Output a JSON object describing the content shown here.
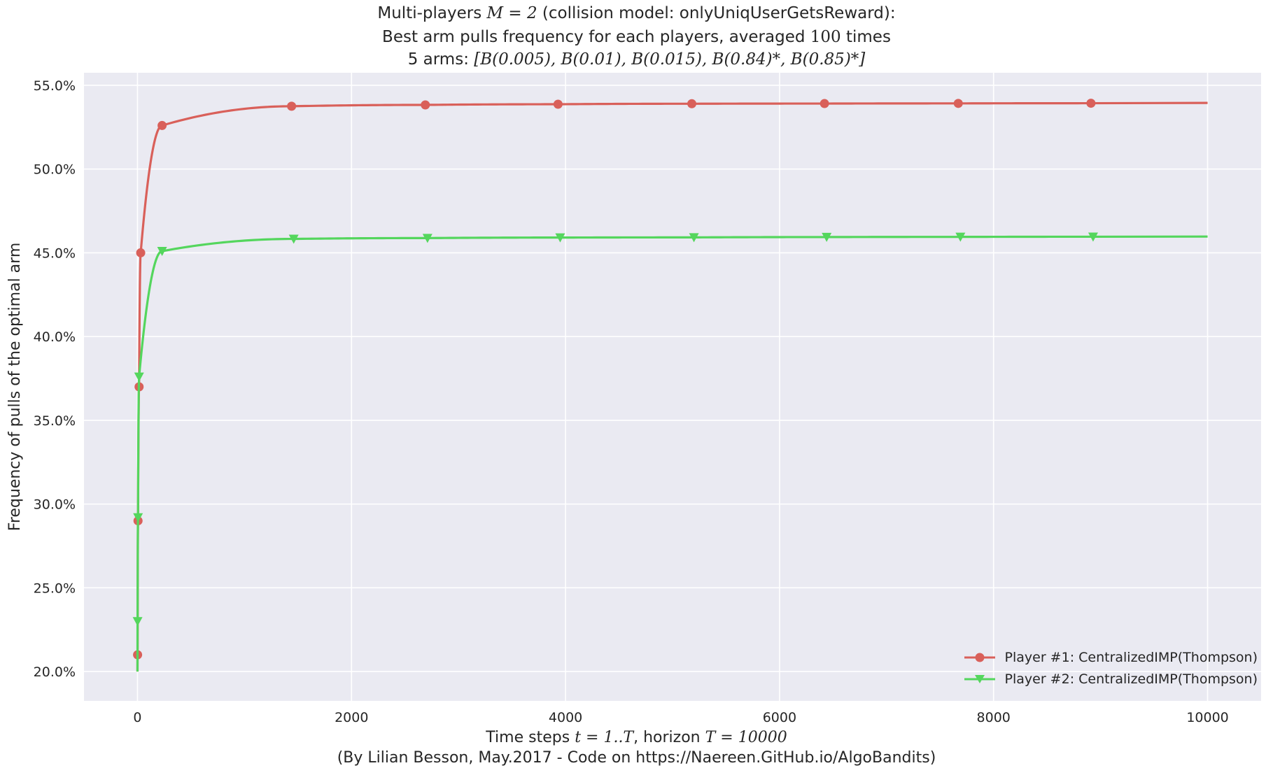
{
  "title": {
    "line1_pre": "Multi-players ",
    "line1_math": "M = 2",
    "line1_post": " (collision model: onlyUniqUserGetsReward):",
    "line2_pre": "Best arm pulls frequency for each players, averaged ",
    "line2_math": "100",
    "line2_post": " times",
    "line3_pre": "5 arms: ",
    "line3_math": "[B(0.005), B(0.01), B(0.015), B(0.84)*, B(0.85)*]"
  },
  "xlabel": {
    "pre": "Time steps ",
    "math1": "t = 1..T",
    "mid": ", horizon ",
    "math2": "T = 10000"
  },
  "credit": "(By Lilian Besson, May.2017 - Code on https://Naereen.GitHub.io/AlgoBandits)",
  "ylabel": "Frequency of pulls of the optimal arm",
  "colors": {
    "background": "#eaeaf2",
    "grid": "#ffffff",
    "player1": "#d9605a",
    "player2": "#54d65d"
  },
  "chart_data": {
    "type": "line",
    "xlim": [
      -500,
      10500
    ],
    "ylim": [
      0.1825,
      0.5575
    ],
    "x_ticks": [
      0,
      2000,
      4000,
      6000,
      8000,
      10000
    ],
    "x_tick_labels": [
      "0",
      "2000",
      "4000",
      "6000",
      "8000",
      "10000"
    ],
    "y_ticks": [
      0.2,
      0.25,
      0.3,
      0.35,
      0.4,
      0.45,
      0.5,
      0.55
    ],
    "y_tick_labels": [
      "20.0%",
      "25.0%",
      "30.0%",
      "35.0%",
      "40.0%",
      "45.0%",
      "50.0%",
      "55.0%"
    ],
    "grid": true,
    "legend_position": "bottom-right",
    "series": [
      {
        "name": "Player #1: CentralizedIMP(Thompson)",
        "marker": "circle",
        "asymptote": 0.5395,
        "start": 0.2,
        "markers_x": [
          1,
          5,
          15,
          30,
          230,
          1440,
          2690,
          3930,
          5180,
          6420,
          7670,
          8910
        ],
        "markers_y": [
          0.21,
          0.29,
          0.37,
          0.45,
          0.526,
          0.5375,
          0.5383,
          0.5387,
          0.539,
          0.5391,
          0.5392,
          0.5393
        ]
      },
      {
        "name": "Player #2: CentralizedIMP(Thompson)",
        "marker": "triangle-down",
        "asymptote": 0.4597,
        "start": 0.2,
        "markers_x": [
          1,
          5,
          15,
          230,
          1460,
          2710,
          3950,
          5200,
          6440,
          7690,
          8930
        ],
        "markers_y": [
          0.23,
          0.292,
          0.376,
          0.451,
          0.4583,
          0.4588,
          0.4591,
          0.4592,
          0.4594,
          0.4595,
          0.4596
        ]
      }
    ]
  }
}
